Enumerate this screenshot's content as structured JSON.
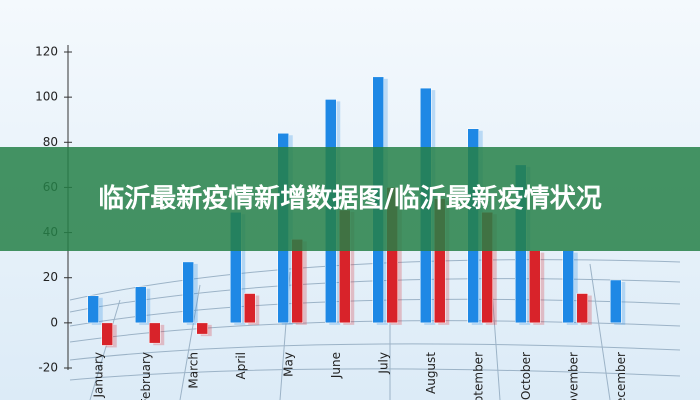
{
  "overlay_title": "临沂最新疫情新增数据图/临沂最新疫情状况",
  "chart_data": {
    "type": "bar",
    "categories": [
      "January",
      "February",
      "March",
      "April",
      "May",
      "June",
      "July",
      "August",
      "September",
      "October",
      "November",
      "December"
    ],
    "series": [
      {
        "color": "#1e88e5",
        "values": [
          12,
          16,
          27,
          49,
          84,
          99,
          109,
          104,
          86,
          70,
          32,
          19
        ]
      },
      {
        "color": "#d8232a",
        "values": [
          -10,
          -9,
          -5,
          13,
          37,
          50,
          60,
          55,
          49,
          32,
          13,
          null
        ]
      }
    ],
    "ylim": [
      -20,
      120
    ],
    "yticks": [
      -20,
      0,
      20,
      40,
      60,
      80,
      100,
      120
    ],
    "grid": true
  }
}
